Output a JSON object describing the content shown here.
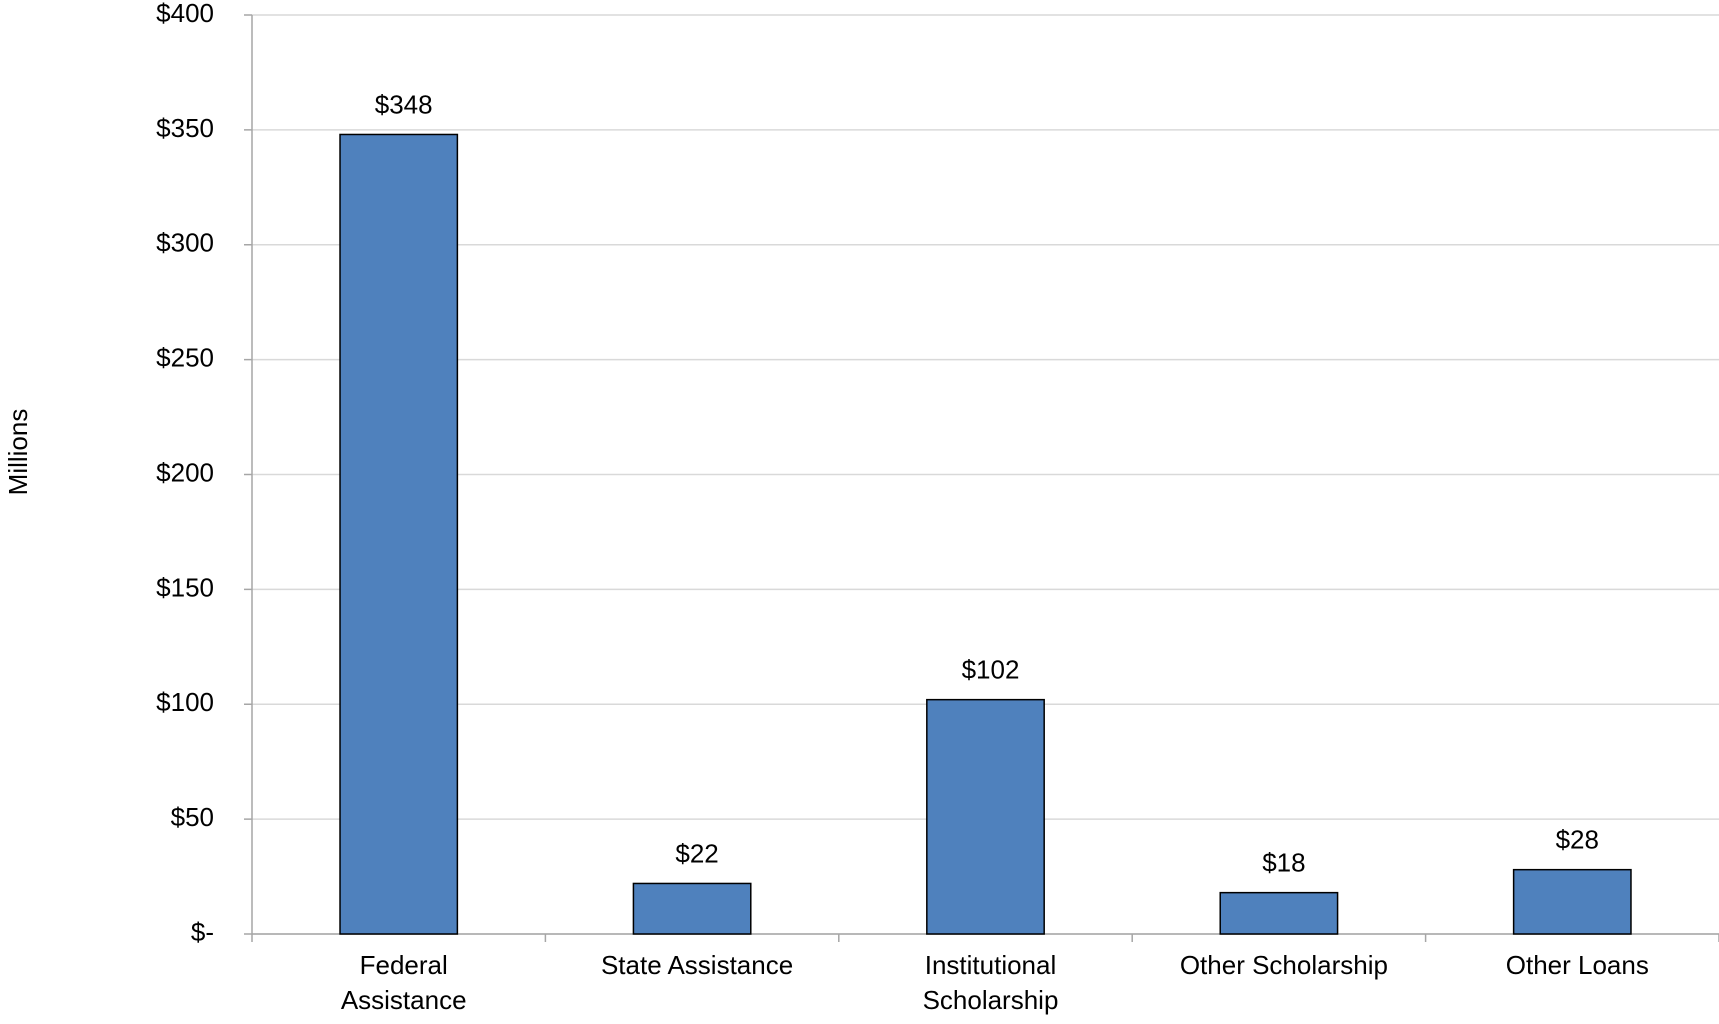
{
  "chart_data": {
    "type": "bar",
    "y_label": "Millions",
    "categories": [
      "Federal\nAssistance",
      "State Assistance",
      "Institutional\nScholarship",
      "Other Scholarship",
      "Other Loans"
    ],
    "values": [
      348,
      22,
      102,
      18,
      28
    ],
    "value_labels": [
      "$348",
      "$22",
      "$102",
      "$18",
      "$28"
    ],
    "color": "#4f81bd",
    "ylim": [
      0,
      400
    ],
    "yticks": [
      {
        "value": 0,
        "label": "$-"
      },
      {
        "value": 50,
        "label": "$50"
      },
      {
        "value": 100,
        "label": "$100"
      },
      {
        "value": 150,
        "label": "$150"
      },
      {
        "value": 200,
        "label": "$200"
      },
      {
        "value": 250,
        "label": "$250"
      },
      {
        "value": 300,
        "label": "$300"
      },
      {
        "value": 350,
        "label": "$350"
      },
      {
        "value": 400,
        "label": "$400"
      }
    ],
    "grid": true
  }
}
